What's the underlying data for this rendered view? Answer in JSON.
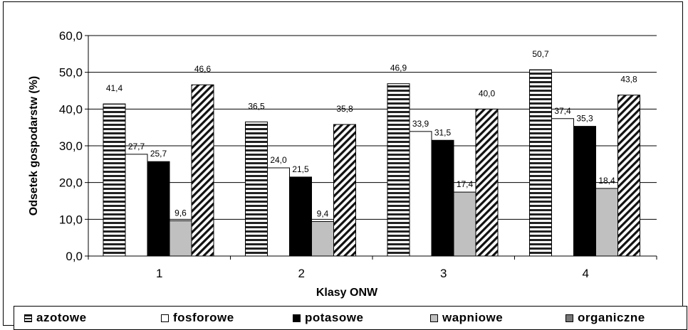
{
  "chart_data": {
    "type": "bar",
    "xlabel": "Klasy ONW",
    "ylabel": "Odsetek gospodarstw (%)",
    "ylim": [
      0,
      60
    ],
    "yticks": [
      "0,0",
      "10,0",
      "20,0",
      "30,0",
      "40,0",
      "50,0",
      "60,0"
    ],
    "categories": [
      "1",
      "2",
      "3",
      "4"
    ],
    "grid": true,
    "legend_position": "bottom",
    "series": [
      {
        "name": "azotowe",
        "pattern": "horizontal-stripes",
        "color": "#ffffff",
        "values": [
          41.4,
          36.5,
          46.9,
          50.7
        ],
        "labels": [
          "41,4",
          "36,5",
          "46,9",
          "50,7"
        ]
      },
      {
        "name": "fosforowe",
        "pattern": "solid",
        "color": "#ffffff",
        "values": [
          27.7,
          24.0,
          33.9,
          37.4
        ],
        "labels": [
          "27,7",
          "24,0",
          "33,9",
          "37,4"
        ]
      },
      {
        "name": "potasowe",
        "pattern": "solid",
        "color": "#000000",
        "values": [
          25.7,
          21.5,
          31.5,
          35.3
        ],
        "labels": [
          "25,7",
          "21,5",
          "31,5",
          "35,3"
        ]
      },
      {
        "name": "wapniowe",
        "pattern": "solid",
        "color": "#c0c0c0",
        "values": [
          9.6,
          9.4,
          17.4,
          18.4
        ],
        "labels": [
          "9,6",
          "9,4",
          "17,4",
          "18,4"
        ]
      },
      {
        "name": "organiczne",
        "pattern": "diagonal-stripes",
        "color": "#ffffff",
        "values": [
          46.6,
          35.8,
          40.0,
          43.8
        ],
        "labels": [
          "46,6",
          "35,8",
          "40,0",
          "43,8"
        ]
      }
    ]
  }
}
